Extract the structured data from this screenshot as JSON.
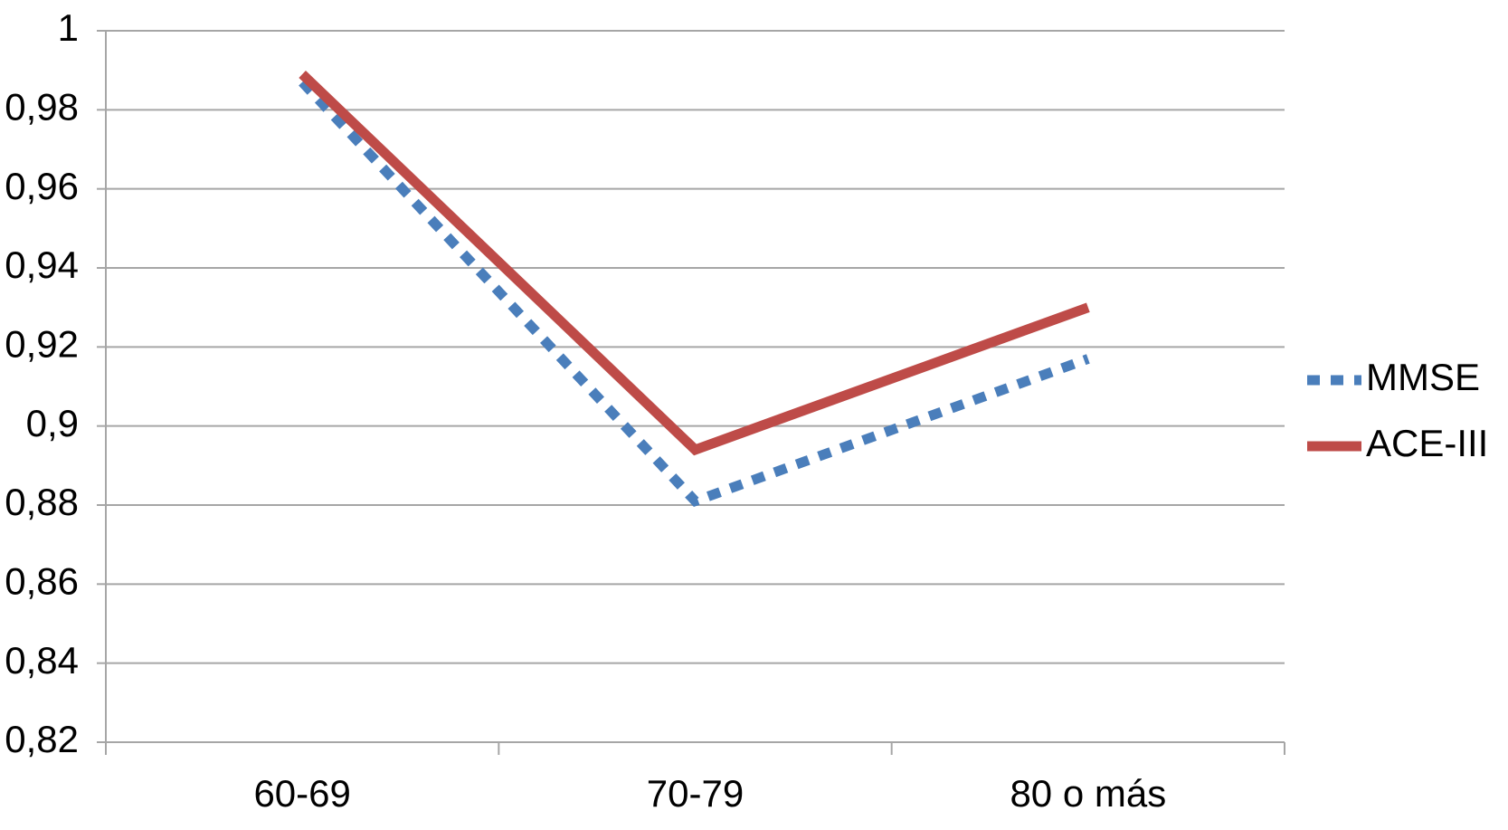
{
  "chart_data": {
    "type": "line",
    "categories": [
      "60-69",
      "70-79",
      "80 o más"
    ],
    "series": [
      {
        "name": "MMSE",
        "color": "#4a7ebb",
        "dashed": true,
        "values": [
          0.987,
          0.881,
          0.917
        ]
      },
      {
        "name": "ACE-III",
        "color": "#be4b48",
        "dashed": false,
        "values": [
          0.989,
          0.894,
          0.93
        ]
      }
    ],
    "ylim": [
      0.82,
      1
    ],
    "yticks": [
      {
        "value": 0.82,
        "label": "0,82"
      },
      {
        "value": 0.84,
        "label": "0,84"
      },
      {
        "value": 0.86,
        "label": "0,86"
      },
      {
        "value": 0.88,
        "label": "0,88"
      },
      {
        "value": 0.9,
        "label": "0,9"
      },
      {
        "value": 0.92,
        "label": "0,92"
      },
      {
        "value": 0.94,
        "label": "0,94"
      },
      {
        "value": 0.96,
        "label": "0,96"
      },
      {
        "value": 0.98,
        "label": "0,98"
      },
      1
    ],
    "grid": true,
    "legend": "right"
  }
}
